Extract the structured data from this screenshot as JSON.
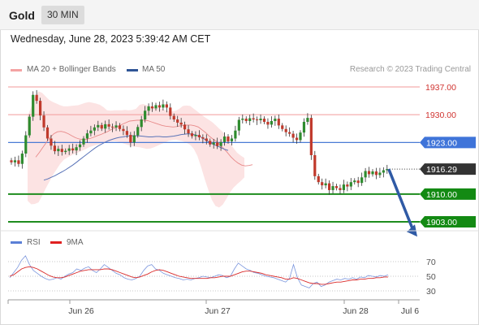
{
  "header": {
    "symbol": "Gold",
    "interval": "30 MIN"
  },
  "datetime": "Wednesday, June 28, 2023 5:39:42 AM CET",
  "credit": "Research © 2023 Trading Central",
  "legend": [
    {
      "label": "MA 20 + Bollinger Bands",
      "color": "#f4a3a3"
    },
    {
      "label": "MA 50",
      "color": "#2f5596"
    }
  ],
  "rsi_legend": [
    {
      "label": "RSI",
      "color": "#5b7fd6"
    },
    {
      "label": "9MA",
      "color": "#e02020"
    }
  ],
  "colors": {
    "up": "#2e8b2e",
    "down": "#c0392b",
    "support": "#1e8c1e",
    "resistance": "#f29a9a",
    "pivot": "#4a7bd5",
    "arrow": "#2f5aa5",
    "price": "#333333"
  },
  "chart_data": [
    {
      "type": "candlestick",
      "ylim": [
        1901,
        1941
      ],
      "x_ticks": [
        "Jun 26",
        "Jun 27",
        "Jun 28",
        "Jul 6"
      ],
      "levels": [
        {
          "value": 1937.0,
          "label": "1937.00",
          "kind": "resistance"
        },
        {
          "value": 1930.0,
          "label": "1930.00",
          "kind": "resistance"
        },
        {
          "value": 1923.0,
          "label": "1923.00",
          "kind": "pivot"
        },
        {
          "value": 1910.0,
          "label": "1910.00",
          "kind": "support"
        },
        {
          "value": 1903.0,
          "label": "1903.00",
          "kind": "support"
        }
      ],
      "last_price": {
        "value": 1916.29,
        "label": "1916.29"
      },
      "forecast": {
        "from": 1916.3,
        "to": 1905.0
      },
      "closes": [
        1918.0,
        1918.5,
        1917.6,
        1920.2,
        1924.8,
        1929.5,
        1935.0,
        1933.5,
        1929.8,
        1926.8,
        1924.0,
        1922.2,
        1920.8,
        1921.4,
        1920.6,
        1920.9,
        1921.5,
        1921.0,
        1921.8,
        1922.5,
        1924.0,
        1925.3,
        1926.0,
        1926.8,
        1927.4,
        1926.5,
        1927.6,
        1927.0,
        1926.8,
        1927.3,
        1926.4,
        1925.9,
        1924.9,
        1923.0,
        1924.8,
        1926.9,
        1928.8,
        1931.0,
        1932.1,
        1931.6,
        1932.4,
        1931.8,
        1932.6,
        1931.8,
        1929.7,
        1928.8,
        1928.0,
        1927.5,
        1926.3,
        1925.3,
        1924.6,
        1924.9,
        1924.3,
        1924.0,
        1923.4,
        1922.5,
        1923.0,
        1922.1,
        1923.1,
        1924.5,
        1923.3,
        1924.0,
        1926.0,
        1928.7,
        1929.0,
        1928.4,
        1929.1,
        1928.8,
        1928.6,
        1929.0,
        1928.2,
        1927.5,
        1928.4,
        1929.0,
        1927.3,
        1926.4,
        1925.6,
        1925.2,
        1924.2,
        1923.6,
        1925.5,
        1928.2,
        1929.2,
        1919.8,
        1914.5,
        1913.0,
        1912.2,
        1912.7,
        1911.0,
        1912.0,
        1911.5,
        1911.0,
        1912.4,
        1911.9,
        1913.0,
        1913.4,
        1912.8,
        1914.2,
        1915.8,
        1915.0,
        1915.7,
        1914.8,
        1915.4,
        1916.0,
        1916.3
      ],
      "ma20": [
        1919.3,
        1920.5,
        1921.8,
        1923.1,
        1924.3,
        1925.2,
        1925.7,
        1925.8,
        1925.6,
        1925.2,
        1924.7,
        1924.2,
        1923.9,
        1923.7,
        1923.8,
        1924.0,
        1924.3,
        1924.7,
        1925.0,
        1925.4,
        1925.8,
        1926.3,
        1926.7,
        1927.1,
        1927.6,
        1928.0,
        1928.4,
        1928.5,
        1928.6,
        1928.6,
        1928.6,
        1928.5,
        1928.2,
        1927.9,
        1927.6,
        1927.3,
        1927.1,
        1927.0,
        1926.9,
        1927.0,
        1927.2,
        1927.3,
        1927.4,
        1927.4,
        1927.2,
        1926.9,
        1926.2,
        1925.5,
        1924.6,
        1923.9,
        1923.3,
        1922.4,
        1921.5,
        1920.5,
        1919.4,
        1918.5,
        1917.8,
        1917.3,
        1917.1,
        1917.2,
        1917.4
      ],
      "ma20_x0": 44,
      "ma50": [
        1913.5,
        1913.8,
        1914.2,
        1914.6,
        1915.1,
        1915.6,
        1916.1,
        1916.7,
        1917.3,
        1918.0,
        1918.7,
        1919.4,
        1920.1,
        1920.8,
        1921.5,
        1922.1,
        1922.6,
        1923.1,
        1923.5,
        1923.8,
        1924.1,
        1924.3,
        1924.4,
        1924.6,
        1924.7,
        1924.7,
        1924.7,
        1924.6,
        1924.5,
        1924.4,
        1924.4,
        1924.5,
        1924.5,
        1924.4,
        1924.4,
        1924.5,
        1924.6,
        1924.8,
        1925.0,
        1925.1,
        1925.2,
        1925.1,
        1924.9,
        1924.6,
        1924.1,
        1923.5,
        1923.0,
        1922.5,
        1922.1,
        1921.7,
        1921.3,
        1921.0
      ],
      "ma50_x0": 54,
      "boll_upper": [
        1929.5,
        1932.0,
        1934.5,
        1935.9,
        1935.5,
        1934.6,
        1933.7,
        1933.2,
        1932.8,
        1932.4,
        1932.1,
        1932.1,
        1932.2,
        1932.3,
        1932.4,
        1932.7,
        1933.0,
        1933.2,
        1933.0,
        1932.8,
        1932.5,
        1931.9,
        1931.1,
        1931.0,
        1931.1,
        1931.1,
        1931.1,
        1931.2,
        1931.1,
        1931.2,
        1931.5,
        1932.5,
        1932.7,
        1932.4,
        1932.1,
        1931.9,
        1931.7,
        1931.5,
        1931.2,
        1930.9,
        1930.8,
        1931.0,
        1931.5,
        1932.2,
        1932.3,
        1932.2,
        1931.5,
        1930.8,
        1930.1,
        1929.4,
        1928.8,
        1928.2,
        1927.4,
        1926.5,
        1925.7,
        1924.5,
        1922.9,
        1921.6,
        1920.4,
        1919.7,
        1919.1
      ],
      "boll_lower": [
        1908.3,
        1907.4,
        1907.5,
        1907.9,
        1909.5,
        1911.4,
        1913.1,
        1914.8,
        1916.2,
        1917.6,
        1918.6,
        1919.2,
        1919.7,
        1920.1,
        1920.5,
        1920.9,
        1921.3,
        1921.8,
        1922.1,
        1922.4,
        1922.6,
        1922.9,
        1923.1,
        1923.2,
        1923.3,
        1923.2,
        1922.9,
        1922.6,
        1922.3,
        1922.0,
        1921.9,
        1921.8,
        1921.6,
        1921.4,
        1921.5,
        1921.8,
        1922.2,
        1922.6,
        1923.0,
        1923.4,
        1923.6,
        1923.7,
        1923.5,
        1923.3,
        1922.9,
        1922.4,
        1921.4,
        1919.6,
        1916.9,
        1913.8,
        1911.1,
        1908.5,
        1907.0,
        1906.6,
        1907.3,
        1908.8,
        1910.4,
        1911.6,
        1912.5,
        1913.3,
        1914.2
      ],
      "boll_x0": 34
    },
    {
      "type": "line",
      "ylim": [
        20,
        85
      ],
      "y_ticks": [
        70,
        50,
        30
      ],
      "series": [
        {
          "name": "RSI",
          "values": [
            48,
            55,
            62,
            72,
            78,
            66,
            58,
            54,
            50,
            47,
            45,
            46,
            48,
            46,
            50,
            53,
            55,
            60,
            58,
            61,
            63,
            58,
            55,
            60,
            66,
            62,
            58,
            54,
            52,
            48,
            46,
            45,
            47,
            50,
            58,
            64,
            66,
            60,
            58,
            54,
            52,
            50,
            48,
            47,
            45,
            46,
            45,
            47,
            48,
            50,
            49,
            48,
            50,
            52,
            51,
            48,
            50,
            60,
            68,
            64,
            60,
            58,
            55,
            54,
            52,
            50,
            49,
            48,
            46,
            44,
            42,
            47,
            66,
            48,
            38,
            36,
            34,
            40,
            42,
            36,
            38,
            42,
            44,
            46,
            45,
            47,
            46,
            48,
            46,
            49,
            48,
            51,
            50,
            49,
            51,
            50,
            52
          ]
        },
        {
          "name": "9MA",
          "values": [
            50,
            52,
            56,
            60,
            62,
            63,
            62,
            60,
            57,
            54,
            51,
            49,
            48,
            48,
            49,
            51,
            53,
            55,
            57,
            58,
            59,
            59,
            59,
            59,
            60,
            60,
            59,
            57,
            55,
            53,
            51,
            49,
            48,
            49,
            51,
            53,
            56,
            58,
            59,
            58,
            56,
            54,
            52,
            50,
            49,
            48,
            47,
            47,
            47,
            47,
            47,
            48,
            48,
            49,
            50,
            50,
            50,
            52,
            54,
            56,
            57,
            57,
            56,
            55,
            54,
            52,
            51,
            50,
            49,
            48,
            46,
            46,
            48,
            47,
            45,
            43,
            41,
            40,
            40,
            39,
            39,
            40,
            41,
            42,
            42,
            43,
            44,
            45,
            45,
            46,
            46,
            47,
            47,
            48,
            48,
            49,
            49
          ]
        }
      ]
    }
  ]
}
